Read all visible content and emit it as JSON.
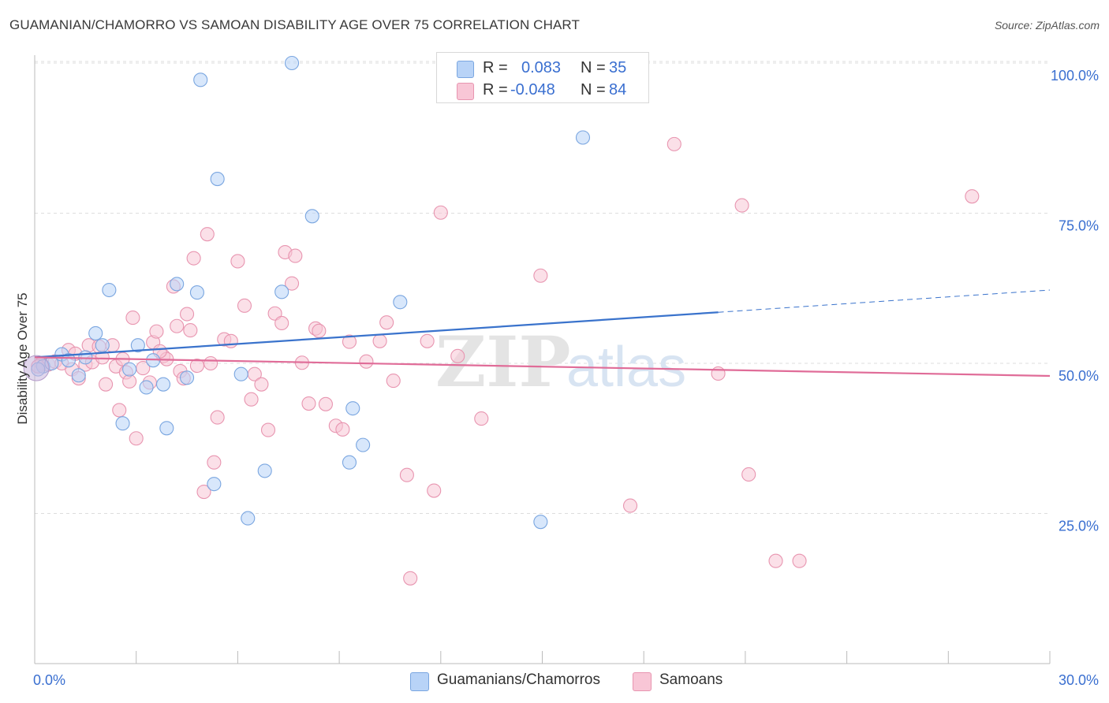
{
  "title": "GUAMANIAN/CHAMORRO VS SAMOAN DISABILITY AGE OVER 75 CORRELATION CHART",
  "source": "Source: ZipAtlas.com",
  "watermark": {
    "zip": "ZIP",
    "atlas": "atlas"
  },
  "stats": {
    "r_label": "R =",
    "n_label": "N =",
    "rows": [
      {
        "r": "0.083",
        "n": "35",
        "fill": "#b8d3f7",
        "stroke": "#7aa6e0"
      },
      {
        "r": "-0.048",
        "n": "84",
        "fill": "#f8c6d6",
        "stroke": "#e895b0"
      }
    ]
  },
  "legend": {
    "items": [
      {
        "label": "Guamanians/Chamorros",
        "fill": "#b8d3f7",
        "stroke": "#7aa6e0"
      },
      {
        "label": "Samoans",
        "fill": "#f8c6d6",
        "stroke": "#e895b0"
      }
    ]
  },
  "chart_data": {
    "type": "scatter",
    "title": "GUAMANIAN/CHAMORRO VS SAMOAN DISABILITY AGE OVER 75 CORRELATION CHART",
    "xlabel": "",
    "ylabel": "Disability Age Over 75",
    "xlim": [
      0,
      30
    ],
    "ylim": [
      0,
      102
    ],
    "x_tick_labels": [
      "0.0%",
      "30.0%"
    ],
    "y_tick_labels": [
      "25.0%",
      "50.0%",
      "75.0%",
      "100.0%"
    ],
    "y_ticks": [
      25,
      50,
      75,
      100
    ],
    "grid": "horizontal dashed",
    "legend_position": "bottom-center",
    "colors": {
      "blue": "#3a73cc",
      "pink": "#e06c98",
      "tick_label": "#3a6fd0"
    },
    "series": [
      {
        "name": "Guamanians/Chamorros",
        "color": "#7aa6e0",
        "fill": "#b8d3f7",
        "trend": {
          "x": [
            0,
            20.2
          ],
          "y": [
            51,
            58.5
          ],
          "dash_x": [
            20.2,
            30
          ],
          "dash_y": [
            58.5,
            62.2
          ]
        },
        "points": [
          {
            "x": 0.25,
            "y": 49.5
          },
          {
            "x": 0.5,
            "y": 50
          },
          {
            "x": 0.8,
            "y": 51.5
          },
          {
            "x": 1.0,
            "y": 50.5
          },
          {
            "x": 1.3,
            "y": 48
          },
          {
            "x": 1.5,
            "y": 51
          },
          {
            "x": 1.8,
            "y": 55
          },
          {
            "x": 2.0,
            "y": 53
          },
          {
            "x": 2.2,
            "y": 62.2
          },
          {
            "x": 2.6,
            "y": 40
          },
          {
            "x": 2.8,
            "y": 49
          },
          {
            "x": 3.05,
            "y": 53
          },
          {
            "x": 3.3,
            "y": 46
          },
          {
            "x": 3.5,
            "y": 50.5
          },
          {
            "x": 3.8,
            "y": 46.5
          },
          {
            "x": 3.9,
            "y": 39.2
          },
          {
            "x": 4.2,
            "y": 63.2
          },
          {
            "x": 4.5,
            "y": 47.6
          },
          {
            "x": 4.8,
            "y": 61.8
          },
          {
            "x": 4.9,
            "y": 97.2
          },
          {
            "x": 5.3,
            "y": 29.9
          },
          {
            "x": 5.4,
            "y": 80.7
          },
          {
            "x": 6.3,
            "y": 24.2
          },
          {
            "x": 6.1,
            "y": 48.2
          },
          {
            "x": 6.8,
            "y": 32.1
          },
          {
            "x": 7.3,
            "y": 61.9
          },
          {
            "x": 7.6,
            "y": 100
          },
          {
            "x": 8.2,
            "y": 74.5
          },
          {
            "x": 9.3,
            "y": 33.5
          },
          {
            "x": 9.4,
            "y": 42.5
          },
          {
            "x": 9.7,
            "y": 36.4
          },
          {
            "x": 10.8,
            "y": 60.2
          },
          {
            "x": 14.95,
            "y": 23.6
          },
          {
            "x": 16.2,
            "y": 87.6
          },
          {
            "x": 0.1,
            "y": 49
          }
        ]
      },
      {
        "name": "Samoans",
        "color": "#e895b0",
        "fill": "#f8c6d6",
        "trend": {
          "x": [
            0,
            30
          ],
          "y": [
            51,
            47.9
          ]
        },
        "points": [
          {
            "x": 0.2,
            "y": 50
          },
          {
            "x": 0.4,
            "y": 49.8
          },
          {
            "x": 0.6,
            "y": 50.3
          },
          {
            "x": 0.8,
            "y": 50
          },
          {
            "x": 1.0,
            "y": 52.2
          },
          {
            "x": 1.1,
            "y": 49
          },
          {
            "x": 1.3,
            "y": 47.5
          },
          {
            "x": 1.5,
            "y": 49.8
          },
          {
            "x": 1.6,
            "y": 53
          },
          {
            "x": 1.7,
            "y": 50.2
          },
          {
            "x": 1.9,
            "y": 52.8
          },
          {
            "x": 2.0,
            "y": 51
          },
          {
            "x": 2.1,
            "y": 46.5
          },
          {
            "x": 2.3,
            "y": 53
          },
          {
            "x": 2.4,
            "y": 49.5
          },
          {
            "x": 2.5,
            "y": 42.2
          },
          {
            "x": 2.7,
            "y": 48.5
          },
          {
            "x": 2.8,
            "y": 47
          },
          {
            "x": 2.9,
            "y": 57.6
          },
          {
            "x": 3.0,
            "y": 37.5
          },
          {
            "x": 3.2,
            "y": 49.2
          },
          {
            "x": 3.4,
            "y": 46.8
          },
          {
            "x": 3.5,
            "y": 53.5
          },
          {
            "x": 3.6,
            "y": 55.3
          },
          {
            "x": 3.8,
            "y": 51.2
          },
          {
            "x": 3.9,
            "y": 50.7
          },
          {
            "x": 4.1,
            "y": 62.8
          },
          {
            "x": 4.2,
            "y": 56.2
          },
          {
            "x": 4.3,
            "y": 48.7
          },
          {
            "x": 4.4,
            "y": 47.5
          },
          {
            "x": 4.5,
            "y": 58.2
          },
          {
            "x": 4.6,
            "y": 55.5
          },
          {
            "x": 4.7,
            "y": 67.5
          },
          {
            "x": 4.8,
            "y": 49.6
          },
          {
            "x": 5.0,
            "y": 28.6
          },
          {
            "x": 5.1,
            "y": 71.5
          },
          {
            "x": 5.3,
            "y": 33.5
          },
          {
            "x": 5.4,
            "y": 41
          },
          {
            "x": 5.6,
            "y": 54
          },
          {
            "x": 5.8,
            "y": 53.7
          },
          {
            "x": 6.0,
            "y": 67
          },
          {
            "x": 6.2,
            "y": 59.6
          },
          {
            "x": 6.5,
            "y": 48.2
          },
          {
            "x": 6.7,
            "y": 46.5
          },
          {
            "x": 6.9,
            "y": 38.9
          },
          {
            "x": 7.1,
            "y": 58.3
          },
          {
            "x": 7.3,
            "y": 56.7
          },
          {
            "x": 7.4,
            "y": 68.5
          },
          {
            "x": 7.6,
            "y": 63.3
          },
          {
            "x": 7.7,
            "y": 67.9
          },
          {
            "x": 7.9,
            "y": 50.1
          },
          {
            "x": 8.1,
            "y": 43.3
          },
          {
            "x": 8.3,
            "y": 55.8
          },
          {
            "x": 8.4,
            "y": 55.4
          },
          {
            "x": 8.6,
            "y": 43.2
          },
          {
            "x": 8.9,
            "y": 39.6
          },
          {
            "x": 9.1,
            "y": 39
          },
          {
            "x": 9.3,
            "y": 53.6
          },
          {
            "x": 10.2,
            "y": 53.7
          },
          {
            "x": 10.4,
            "y": 56.8
          },
          {
            "x": 10.6,
            "y": 47.1
          },
          {
            "x": 11.0,
            "y": 31.4
          },
          {
            "x": 11.1,
            "y": 14.2
          },
          {
            "x": 11.6,
            "y": 53.7
          },
          {
            "x": 11.8,
            "y": 28.8
          },
          {
            "x": 12.0,
            "y": 75.1
          },
          {
            "x": 12.5,
            "y": 51.2
          },
          {
            "x": 13.2,
            "y": 40.8
          },
          {
            "x": 14.95,
            "y": 64.6
          },
          {
            "x": 17.6,
            "y": 26.3
          },
          {
            "x": 18.9,
            "y": 86.5
          },
          {
            "x": 20.2,
            "y": 48.3
          },
          {
            "x": 20.9,
            "y": 76.3
          },
          {
            "x": 21.1,
            "y": 31.5
          },
          {
            "x": 21.9,
            "y": 17.1
          },
          {
            "x": 22.6,
            "y": 17.1
          },
          {
            "x": 27.7,
            "y": 77.8
          },
          {
            "x": 0.1,
            "y": 49.5
          },
          {
            "x": 3.7,
            "y": 52
          },
          {
            "x": 5.2,
            "y": 50
          },
          {
            "x": 2.6,
            "y": 50.7
          },
          {
            "x": 6.4,
            "y": 44
          },
          {
            "x": 9.8,
            "y": 50.3
          },
          {
            "x": 1.2,
            "y": 51.6
          }
        ]
      }
    ]
  }
}
